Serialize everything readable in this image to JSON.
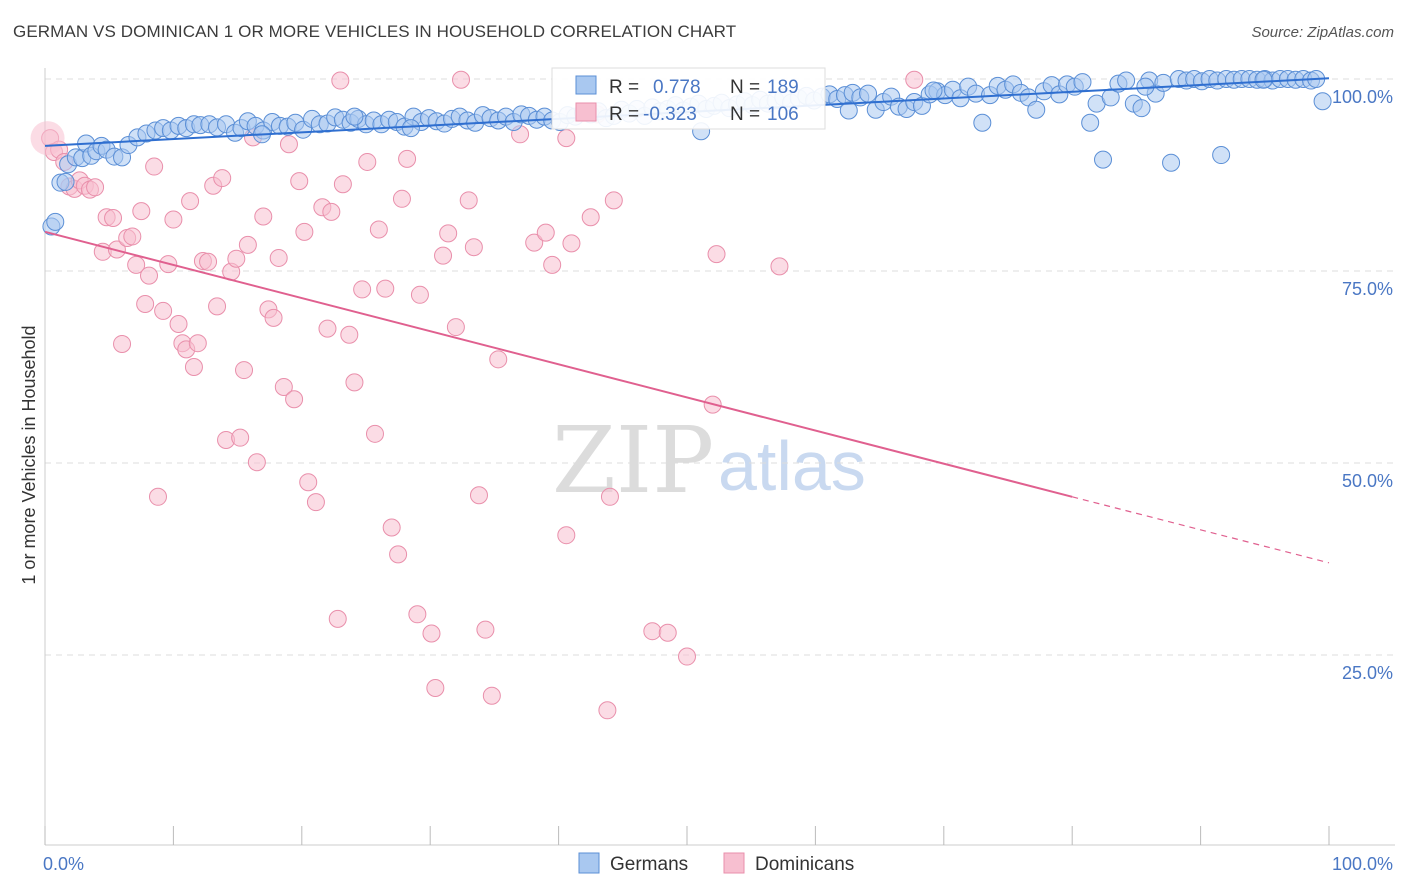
{
  "title": "GERMAN VS DOMINICAN 1 OR MORE VEHICLES IN HOUSEHOLD CORRELATION CHART",
  "source": "Source: ZipAtlas.com",
  "watermark": {
    "zip": "ZIP",
    "atlas": "atlas"
  },
  "colors": {
    "german_fill": "#a9c8f0",
    "german_stroke": "#5b8fd6",
    "german_line": "#2f6fd0",
    "dominican_fill": "#f7bfd0",
    "dominican_stroke": "#e98fab",
    "dominican_line": "#e0608f",
    "axis_label": "#4a77c4",
    "grid": "#dddddd"
  },
  "stats": {
    "german": {
      "r_label": "R =",
      "r_value": "0.778",
      "n_label": "N =",
      "n_value": "189"
    },
    "dominican": {
      "r_label": "R =",
      "r_value": "-0.323",
      "n_label": "N =",
      "n_value": "106"
    }
  },
  "chart_data": {
    "type": "scatter",
    "title": "GERMAN VS DOMINICAN 1 OR MORE VEHICLES IN HOUSEHOLD CORRELATION CHART",
    "xlabel": "",
    "ylabel": "1 or more Vehicles in Household",
    "xlim": [
      0,
      100
    ],
    "ylim": [
      0,
      104
    ],
    "x_tick_labels": [
      "0.0%",
      "100.0%"
    ],
    "y_ticks": [
      25,
      50,
      75,
      100
    ],
    "y_tick_labels": [
      "25.0%",
      "50.0%",
      "75.0%",
      "100.0%"
    ],
    "grid": true,
    "legend": {
      "position": "bottom-center",
      "entries": [
        "Germans",
        "Dominicans"
      ]
    },
    "series": [
      {
        "name": "Germans",
        "trend": {
          "x": [
            0,
            100
          ],
          "y": [
            91.3,
            100.1
          ]
        },
        "points": [
          [
            0.5,
            80.8
          ],
          [
            0.8,
            81.4
          ],
          [
            1.2,
            86.5
          ],
          [
            1.6,
            86.6
          ],
          [
            1.8,
            88.9
          ],
          [
            2.4,
            89.8
          ],
          [
            2.9,
            89.7
          ],
          [
            3.2,
            91.6
          ],
          [
            3.6,
            90.0
          ],
          [
            4.0,
            90.6
          ],
          [
            4.4,
            91.3
          ],
          [
            4.8,
            90.8
          ],
          [
            5.4,
            89.9
          ],
          [
            6.0,
            89.8
          ],
          [
            6.5,
            91.4
          ],
          [
            7.2,
            92.4
          ],
          [
            7.9,
            92.9
          ],
          [
            8.6,
            93.3
          ],
          [
            9.2,
            93.6
          ],
          [
            9.8,
            93.3
          ],
          [
            10.4,
            93.9
          ],
          [
            11.0,
            93.6
          ],
          [
            11.6,
            94.1
          ],
          [
            12.1,
            94.0
          ],
          [
            12.8,
            94.1
          ],
          [
            13.4,
            93.7
          ],
          [
            14.1,
            94.1
          ],
          [
            14.8,
            93.0
          ],
          [
            15.3,
            93.6
          ],
          [
            15.8,
            94.5
          ],
          [
            16.4,
            93.9
          ],
          [
            17.0,
            93.3
          ],
          [
            17.7,
            94.4
          ],
          [
            18.3,
            93.9
          ],
          [
            18.9,
            93.8
          ],
          [
            19.5,
            94.3
          ],
          [
            20.1,
            93.4
          ],
          [
            20.8,
            94.8
          ],
          [
            21.4,
            94.1
          ],
          [
            22.0,
            94.2
          ],
          [
            22.6,
            95.0
          ],
          [
            23.2,
            94.7
          ],
          [
            23.8,
            94.3
          ],
          [
            24.4,
            94.8
          ],
          [
            25.0,
            94.1
          ],
          [
            25.6,
            94.6
          ],
          [
            26.2,
            94.1
          ],
          [
            26.8,
            94.7
          ],
          [
            27.4,
            94.4
          ],
          [
            28.0,
            93.8
          ],
          [
            28.7,
            95.1
          ],
          [
            29.3,
            94.4
          ],
          [
            29.9,
            94.9
          ],
          [
            30.5,
            94.5
          ],
          [
            31.1,
            94.2
          ],
          [
            31.7,
            94.8
          ],
          [
            32.3,
            95.1
          ],
          [
            32.9,
            94.6
          ],
          [
            33.5,
            94.3
          ],
          [
            34.1,
            95.3
          ],
          [
            34.7,
            94.9
          ],
          [
            35.3,
            94.6
          ],
          [
            35.9,
            95.1
          ],
          [
            36.5,
            94.4
          ],
          [
            37.1,
            95.4
          ],
          [
            37.7,
            95.2
          ],
          [
            38.3,
            94.7
          ],
          [
            38.9,
            95.1
          ],
          [
            39.5,
            94.6
          ],
          [
            40.1,
            94.4
          ],
          [
            40.7,
            95.3
          ],
          [
            41.3,
            95.1
          ],
          [
            41.9,
            95.6
          ],
          [
            42.5,
            95.4
          ],
          [
            43.1,
            95.8
          ],
          [
            43.7,
            94.9
          ],
          [
            44.3,
            95.2
          ],
          [
            44.9,
            96.0
          ],
          [
            45.5,
            95.5
          ],
          [
            46.1,
            96.1
          ],
          [
            46.7,
            95.2
          ],
          [
            47.3,
            96.3
          ],
          [
            47.9,
            95.8
          ],
          [
            48.5,
            96.1
          ],
          [
            49.1,
            96.6
          ],
          [
            49.7,
            95.9
          ],
          [
            50.3,
            96.4
          ],
          [
            50.9,
            96.8
          ],
          [
            51.5,
            96.1
          ],
          [
            52.1,
            96.5
          ],
          [
            52.7,
            96.9
          ],
          [
            53.3,
            96.2
          ],
          [
            53.9,
            96.7
          ],
          [
            54.5,
            97.1
          ],
          [
            55.1,
            96.6
          ],
          [
            55.7,
            97.3
          ],
          [
            56.3,
            96.8
          ],
          [
            56.9,
            97.2
          ],
          [
            57.5,
            97.6
          ],
          [
            58.1,
            96.9
          ],
          [
            58.7,
            97.5
          ],
          [
            59.3,
            97.8
          ],
          [
            59.9,
            97.2
          ],
          [
            60.5,
            97.7
          ],
          [
            61.1,
            98.0
          ],
          [
            61.7,
            97.4
          ],
          [
            62.3,
            97.9
          ],
          [
            62.9,
            98.2
          ],
          [
            63.5,
            97.6
          ],
          [
            64.1,
            98.1
          ],
          [
            64.7,
            96.0
          ],
          [
            65.3,
            97.0
          ],
          [
            65.9,
            97.7
          ],
          [
            66.5,
            96.4
          ],
          [
            67.1,
            96.1
          ],
          [
            67.7,
            97.0
          ],
          [
            68.3,
            96.5
          ],
          [
            68.9,
            98.0
          ],
          [
            69.5,
            98.4
          ],
          [
            70.1,
            97.9
          ],
          [
            70.7,
            98.6
          ],
          [
            71.3,
            97.5
          ],
          [
            71.9,
            99.0
          ],
          [
            72.5,
            98.1
          ],
          [
            73.0,
            94.3
          ],
          [
            73.6,
            97.9
          ],
          [
            74.2,
            99.1
          ],
          [
            74.8,
            98.6
          ],
          [
            75.4,
            99.3
          ],
          [
            76.0,
            98.2
          ],
          [
            76.6,
            97.6
          ],
          [
            77.2,
            96.0
          ],
          [
            77.8,
            98.4
          ],
          [
            78.4,
            99.2
          ],
          [
            79.0,
            98.0
          ],
          [
            79.6,
            99.3
          ],
          [
            80.2,
            99.0
          ],
          [
            80.8,
            99.6
          ],
          [
            81.4,
            94.3
          ],
          [
            81.9,
            96.8
          ],
          [
            82.4,
            89.5
          ],
          [
            83.0,
            97.6
          ],
          [
            83.6,
            99.4
          ],
          [
            84.2,
            99.8
          ],
          [
            84.8,
            96.8
          ],
          [
            85.4,
            96.2
          ],
          [
            86.0,
            99.8
          ],
          [
            86.5,
            98.1
          ],
          [
            87.1,
            99.5
          ],
          [
            87.7,
            89.1
          ],
          [
            88.3,
            100
          ],
          [
            88.9,
            99.8
          ],
          [
            89.5,
            100
          ],
          [
            90.1,
            99.7
          ],
          [
            90.7,
            100
          ],
          [
            91.3,
            99.8
          ],
          [
            91.6,
            90.1
          ],
          [
            92.0,
            100
          ],
          [
            92.6,
            99.9
          ],
          [
            93.2,
            100
          ],
          [
            93.8,
            100
          ],
          [
            94.4,
            99.9
          ],
          [
            95.0,
            100
          ],
          [
            95.6,
            99.8
          ],
          [
            96.2,
            100
          ],
          [
            96.8,
            100
          ],
          [
            97.4,
            99.9
          ],
          [
            98.0,
            100
          ],
          [
            98.6,
            99.8
          ],
          [
            99.0,
            100
          ],
          [
            99.5,
            97.1
          ],
          [
            28.5,
            93.6
          ],
          [
            16.9,
            92.8
          ],
          [
            24.1,
            95.1
          ],
          [
            51.1,
            93.2
          ],
          [
            62.6,
            95.9
          ],
          [
            69.2,
            98.5
          ],
          [
            85.7,
            99.0
          ],
          [
            94.9,
            99.9
          ]
        ]
      },
      {
        "name": "Dominicans",
        "trend": {
          "x": [
            0,
            80
          ],
          "y": [
            80.1,
            45.6
          ]
        },
        "trend_dashed": {
          "x": [
            80,
            100
          ],
          "y": [
            45.6,
            37.0
          ]
        },
        "points": [
          [
            0.4,
            92.3
          ],
          [
            0.7,
            90.5
          ],
          [
            1.1,
            90.8
          ],
          [
            1.5,
            89.2
          ],
          [
            1.9,
            86.0
          ],
          [
            2.3,
            85.7
          ],
          [
            2.7,
            86.8
          ],
          [
            3.1,
            86.1
          ],
          [
            3.5,
            85.6
          ],
          [
            3.9,
            85.9
          ],
          [
            4.5,
            77.5
          ],
          [
            4.8,
            82.0
          ],
          [
            5.3,
            81.9
          ],
          [
            5.6,
            77.8
          ],
          [
            6.0,
            65.5
          ],
          [
            6.4,
            79.3
          ],
          [
            6.8,
            79.5
          ],
          [
            7.1,
            75.8
          ],
          [
            7.5,
            82.8
          ],
          [
            7.8,
            70.7
          ],
          [
            8.1,
            74.4
          ],
          [
            8.5,
            88.6
          ],
          [
            8.8,
            45.6
          ],
          [
            9.2,
            69.8
          ],
          [
            9.6,
            75.9
          ],
          [
            10.0,
            81.7
          ],
          [
            10.4,
            68.1
          ],
          [
            10.7,
            65.6
          ],
          [
            11.0,
            64.8
          ],
          [
            11.3,
            84.1
          ],
          [
            11.6,
            62.5
          ],
          [
            11.9,
            65.6
          ],
          [
            12.3,
            76.3
          ],
          [
            12.7,
            76.2
          ],
          [
            13.1,
            86.1
          ],
          [
            13.4,
            70.4
          ],
          [
            13.8,
            87.1
          ],
          [
            14.1,
            53.0
          ],
          [
            14.5,
            74.9
          ],
          [
            14.9,
            76.6
          ],
          [
            15.2,
            53.3
          ],
          [
            15.5,
            62.1
          ],
          [
            15.8,
            78.4
          ],
          [
            16.2,
            92.4
          ],
          [
            16.5,
            50.1
          ],
          [
            17.0,
            82.1
          ],
          [
            17.4,
            70.0
          ],
          [
            17.8,
            68.9
          ],
          [
            18.2,
            76.7
          ],
          [
            18.6,
            59.9
          ],
          [
            19.0,
            91.5
          ],
          [
            19.4,
            58.3
          ],
          [
            19.8,
            86.7
          ],
          [
            20.2,
            80.1
          ],
          [
            20.5,
            47.5
          ],
          [
            21.1,
            44.9
          ],
          [
            21.6,
            83.3
          ],
          [
            22.0,
            67.5
          ],
          [
            22.3,
            82.7
          ],
          [
            22.8,
            29.7
          ],
          [
            23.0,
            99.8
          ],
          [
            23.2,
            86.3
          ],
          [
            23.7,
            66.7
          ],
          [
            24.1,
            60.5
          ],
          [
            24.7,
            72.6
          ],
          [
            25.1,
            89.2
          ],
          [
            25.7,
            53.8
          ],
          [
            26.0,
            80.4
          ],
          [
            26.5,
            72.7
          ],
          [
            27.0,
            41.6
          ],
          [
            27.5,
            38.1
          ],
          [
            27.8,
            84.4
          ],
          [
            28.2,
            89.6
          ],
          [
            29.0,
            30.3
          ],
          [
            29.2,
            71.9
          ],
          [
            30.1,
            27.8
          ],
          [
            30.4,
            20.7
          ],
          [
            31.0,
            77.0
          ],
          [
            31.4,
            79.9
          ],
          [
            32.0,
            67.7
          ],
          [
            32.4,
            99.9
          ],
          [
            33.0,
            84.2
          ],
          [
            33.4,
            78.1
          ],
          [
            34.3,
            28.3
          ],
          [
            34.8,
            19.7
          ],
          [
            35.3,
            63.5
          ],
          [
            37.0,
            92.8
          ],
          [
            38.1,
            78.7
          ],
          [
            39.0,
            80.0
          ],
          [
            39.5,
            75.8
          ],
          [
            40.6,
            92.3
          ],
          [
            40.6,
            40.6
          ],
          [
            41.0,
            78.6
          ],
          [
            42.5,
            82.0
          ],
          [
            43.0,
            95.4
          ],
          [
            43.8,
            17.8
          ],
          [
            44.0,
            45.6
          ],
          [
            44.3,
            84.2
          ],
          [
            47.3,
            28.1
          ],
          [
            48.5,
            27.9
          ],
          [
            50.0,
            24.8
          ],
          [
            52.0,
            57.6
          ],
          [
            52.3,
            77.2
          ],
          [
            57.2,
            75.6
          ],
          [
            67.7,
            99.9
          ],
          [
            33.8,
            45.8
          ]
        ]
      }
    ]
  },
  "legend_labels": {
    "german": "Germans",
    "dominican": "Dominicans"
  }
}
